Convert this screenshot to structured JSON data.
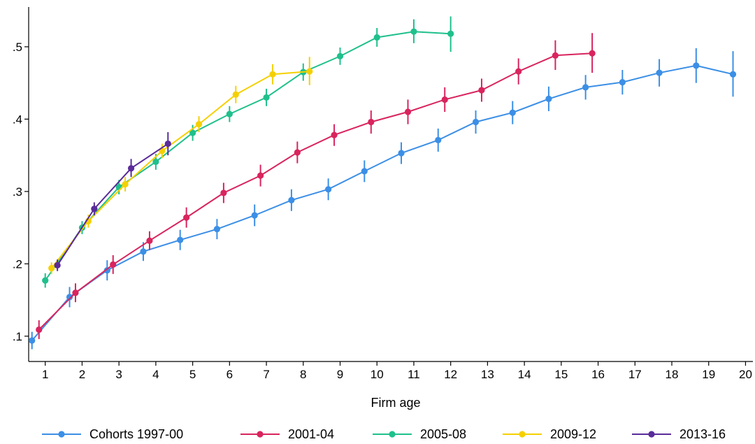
{
  "chart_data": {
    "type": "line",
    "title": "",
    "xlabel": "Firm age",
    "ylabel": "",
    "xlim": [
      0.55,
      20.2
    ],
    "ylim": [
      0.065,
      0.555
    ],
    "x_ticks": [
      1,
      2,
      3,
      4,
      5,
      6,
      7,
      8,
      9,
      10,
      11,
      12,
      13,
      14,
      15,
      16,
      17,
      18,
      19,
      20
    ],
    "y_ticks": [
      0.1,
      0.2,
      0.3,
      0.4,
      0.5
    ],
    "y_tick_labels": [
      ".1",
      ".2",
      ".3",
      ".4",
      ".5"
    ],
    "grid": false,
    "legend_position": "bottom",
    "error_bars": true,
    "series": [
      {
        "name": "Cohorts 1997-00",
        "color": "#3b8fe6",
        "x": [
          0.64,
          1.66,
          2.68,
          3.66,
          4.66,
          5.66,
          6.68,
          7.68,
          8.68,
          9.66,
          10.66,
          11.66,
          12.68,
          13.68,
          14.66,
          15.66,
          16.66,
          17.66,
          18.66,
          19.66
        ],
        "y": [
          0.094,
          0.154,
          0.191,
          0.217,
          0.233,
          0.248,
          0.267,
          0.288,
          0.303,
          0.328,
          0.353,
          0.371,
          0.396,
          0.409,
          0.428,
          0.444,
          0.451,
          0.464,
          0.474,
          0.462
        ],
        "err_low": [
          0.082,
          0.14,
          0.177,
          0.204,
          0.219,
          0.234,
          0.252,
          0.273,
          0.288,
          0.313,
          0.338,
          0.355,
          0.38,
          0.393,
          0.411,
          0.427,
          0.434,
          0.445,
          0.45,
          0.431
        ],
        "err_high": [
          0.106,
          0.168,
          0.205,
          0.23,
          0.247,
          0.262,
          0.282,
          0.303,
          0.318,
          0.343,
          0.368,
          0.387,
          0.412,
          0.425,
          0.445,
          0.461,
          0.468,
          0.483,
          0.498,
          0.494
        ]
      },
      {
        "name": "2001-04",
        "color": "#d9245e",
        "x": [
          0.83,
          1.82,
          2.84,
          3.83,
          4.83,
          5.84,
          6.84,
          7.84,
          8.84,
          9.84,
          10.84,
          11.84,
          12.84,
          13.84,
          14.84,
          15.84
        ],
        "y": [
          0.109,
          0.16,
          0.199,
          0.232,
          0.264,
          0.298,
          0.322,
          0.354,
          0.378,
          0.396,
          0.41,
          0.427,
          0.44,
          0.466,
          0.488,
          0.491
        ],
        "err_low": [
          0.096,
          0.147,
          0.186,
          0.219,
          0.25,
          0.284,
          0.307,
          0.339,
          0.363,
          0.38,
          0.393,
          0.41,
          0.424,
          0.448,
          0.468,
          0.464
        ],
        "err_high": [
          0.122,
          0.173,
          0.212,
          0.245,
          0.278,
          0.312,
          0.337,
          0.369,
          0.393,
          0.412,
          0.427,
          0.444,
          0.456,
          0.484,
          0.509,
          0.519
        ]
      },
      {
        "name": "2005-08",
        "color": "#1fc08c",
        "x": [
          1.0,
          2.0,
          3.0,
          4.0,
          5.0,
          6.0,
          7.0,
          8.0,
          9.0,
          10.0,
          11.0,
          12.0
        ],
        "y": [
          0.177,
          0.25,
          0.306,
          0.341,
          0.381,
          0.407,
          0.43,
          0.465,
          0.487,
          0.513,
          0.521,
          0.518
        ],
        "err_low": [
          0.167,
          0.241,
          0.296,
          0.33,
          0.37,
          0.396,
          0.418,
          0.453,
          0.475,
          0.5,
          0.505,
          0.493
        ],
        "err_high": [
          0.187,
          0.259,
          0.316,
          0.352,
          0.392,
          0.418,
          0.442,
          0.477,
          0.499,
          0.526,
          0.538,
          0.542
        ]
      },
      {
        "name": "2009-12",
        "color": "#f5d000",
        "x": [
          1.17,
          2.17,
          3.17,
          4.17,
          5.17,
          6.17,
          7.17,
          8.17
        ],
        "y": [
          0.194,
          0.259,
          0.31,
          0.356,
          0.393,
          0.434,
          0.462,
          0.466
        ],
        "err_low": [
          0.186,
          0.25,
          0.3,
          0.346,
          0.382,
          0.422,
          0.448,
          0.447
        ],
        "err_high": [
          0.202,
          0.268,
          0.32,
          0.366,
          0.404,
          0.446,
          0.476,
          0.486
        ]
      },
      {
        "name": "2013-16",
        "color": "#5a2b9a",
        "x": [
          1.33,
          2.33,
          3.33,
          4.33
        ],
        "y": [
          0.198,
          0.276,
          0.332,
          0.366
        ],
        "err_low": [
          0.19,
          0.267,
          0.32,
          0.35
        ],
        "err_high": [
          0.206,
          0.285,
          0.345,
          0.382
        ]
      }
    ]
  }
}
